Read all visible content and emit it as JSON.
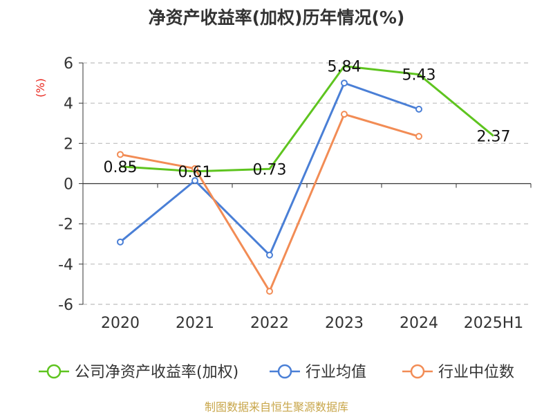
{
  "title": "净资产收益率(加权)历年情况(%)",
  "footer": "制图数据来自恒生聚源数据库",
  "colors": {
    "grid": "#bdbdbd",
    "axis": "#333333"
  },
  "chart_data": {
    "type": "line",
    "title": "净资产收益率(加权)历年情况(%)",
    "ylabel": "(%)",
    "xlabel": "",
    "categories": [
      "2020",
      "2021",
      "2022",
      "2023",
      "2024",
      "2025H1"
    ],
    "ylim": [
      -6,
      6
    ],
    "yticks": [
      6,
      4,
      2,
      0,
      -2,
      -4,
      -6
    ],
    "grid": true,
    "legend_position": "bottom",
    "series": [
      {
        "name": "公司净资产收益率(加权)",
        "color": "#5ec41f",
        "values": [
          0.85,
          0.61,
          0.73,
          5.84,
          5.43,
          2.37
        ],
        "labels": [
          "0.85",
          "0.61",
          "0.73",
          "5.84",
          "5.43",
          "2.37"
        ],
        "markers": false
      },
      {
        "name": "行业均值",
        "color": "#4a7fd6",
        "values": [
          -2.9,
          0.15,
          -3.55,
          5.0,
          3.7,
          null
        ],
        "markers": true
      },
      {
        "name": "行业中位数",
        "color": "#f28c55",
        "values": [
          1.45,
          0.75,
          -5.35,
          3.45,
          2.35,
          null
        ],
        "markers": true
      }
    ]
  }
}
